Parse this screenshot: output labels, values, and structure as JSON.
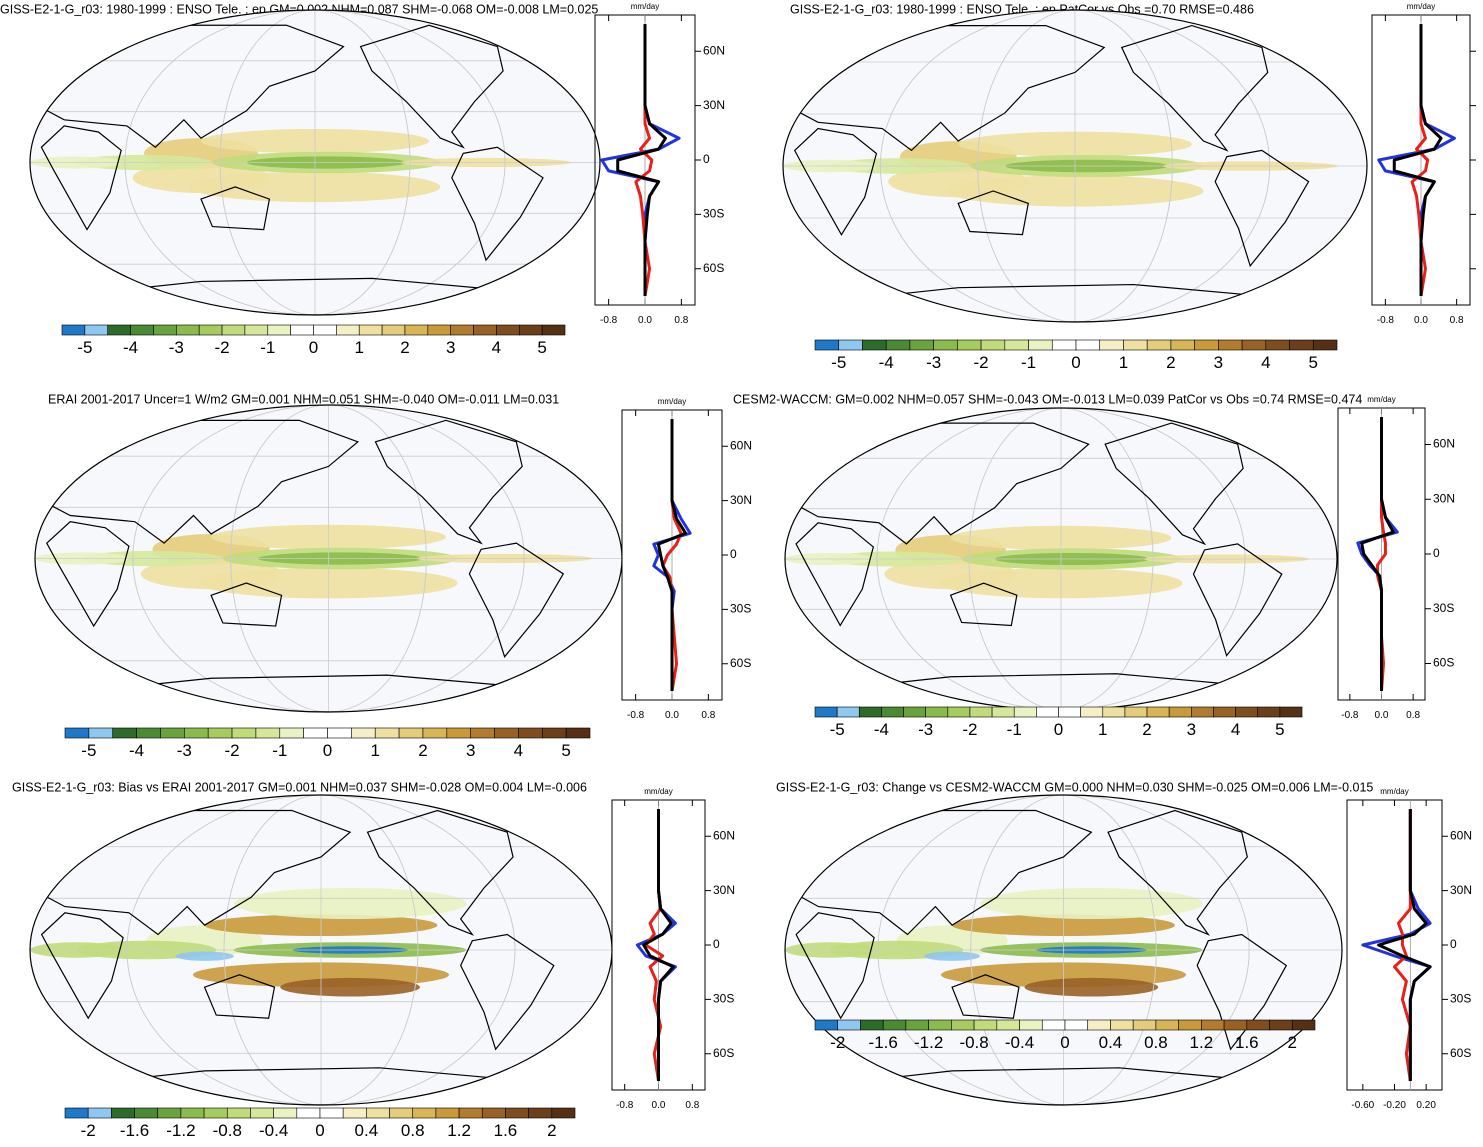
{
  "colormap": [
    "#1f78c8",
    "#8ec7ef",
    "#2e6b2a",
    "#4b8a32",
    "#6aa33d",
    "#8bbb4c",
    "#a6cc5f",
    "#c0db7a",
    "#d5e89a",
    "#e8f2c2",
    "#ffffff",
    "#ffffff",
    "#f5efc8",
    "#ede0a0",
    "#e3cc7a",
    "#d8b555",
    "#c89a3a",
    "#b27c2e",
    "#986226",
    "#7f4e1f",
    "#6b3f1a",
    "#553015"
  ],
  "profile_lat": [
    -75,
    -60,
    -45,
    -30,
    -20,
    -12,
    -6,
    0,
    6,
    12,
    20,
    30,
    45,
    60,
    75
  ],
  "panels": [
    {
      "title": "GISS-E2-1-G_r03: 1980-1999 : ENSO Tele. : ep GM=0.002 NHM=0.087 SHM=-0.068 OM=-0.008 LM=0.025",
      "clim": [
        -5.5,
        5.5
      ],
      "cticks": [
        -5,
        -4,
        -3,
        -2,
        -1,
        0,
        1,
        2,
        3,
        4,
        5
      ],
      "profile": {
        "type": "line",
        "unit": "mm/day",
        "xlim": [
          -1.1,
          1.1
        ],
        "xticks": [
          -0.8,
          {
            "value": 0,
            "label": "0.0"
          },
          0.8
        ],
        "ylim": [
          -80,
          80
        ],
        "yticks": [
          {
            "value": 60,
            "label": "60N"
          },
          {
            "value": 30,
            "label": "30N"
          },
          0,
          {
            "value": -30,
            "label": "30S"
          },
          {
            "value": -60,
            "label": "60S"
          }
        ],
        "series": [
          {
            "color": "#2233dd",
            "values": [
              0,
              0,
              0,
              0,
              0.1,
              0.3,
              -0.8,
              -0.95,
              0.3,
              0.75,
              0.1,
              0,
              0,
              0,
              0
            ]
          },
          {
            "color": "#e8201a",
            "values": [
              0,
              0.1,
              0,
              -0.05,
              -0.1,
              -0.2,
              0.1,
              0.15,
              -0.1,
              0.1,
              0,
              0,
              0,
              0,
              0
            ]
          },
          {
            "color": "#000000",
            "values": [
              0,
              0,
              0,
              0.05,
              0.1,
              0.3,
              -0.6,
              -0.6,
              0.3,
              0.45,
              0.1,
              0,
              0,
              0,
              0
            ]
          }
        ]
      }
    },
    {
      "title": "GISS-E2-1-G_r03: 1980-1999 : ENSO Tele. : ep PatCor vs Obs =0.70 RMSE=0.486",
      "clim": [
        -5.5,
        5.5
      ],
      "cticks": [
        -5,
        -4,
        -3,
        -2,
        -1,
        0,
        1,
        2,
        3,
        4,
        5
      ],
      "profile": {
        "type": "line",
        "unit": "mm/day",
        "xlim": [
          -1.1,
          1.1
        ],
        "xticks": [
          -0.8,
          {
            "value": 0,
            "label": "0.0"
          },
          0.8
        ],
        "ylim": [
          -80,
          80
        ],
        "yticks": [
          60,
          30,
          0,
          -30,
          -60
        ],
        "show_ytick_labels": false,
        "series": [
          {
            "color": "#2233dd",
            "values": [
              0,
              0,
              0,
              0,
              0.1,
              0.3,
              -0.8,
              -0.95,
              0.3,
              0.75,
              0.1,
              0,
              0,
              0,
              0
            ]
          },
          {
            "color": "#e8201a",
            "values": [
              0,
              0.1,
              0,
              -0.05,
              -0.1,
              -0.2,
              0.1,
              0.15,
              -0.1,
              0.1,
              0,
              0,
              0,
              0,
              0
            ]
          },
          {
            "color": "#000000",
            "values": [
              0,
              0,
              0,
              0.05,
              0.1,
              0.3,
              -0.6,
              -0.6,
              0.3,
              0.45,
              0.1,
              0,
              0,
              0,
              0
            ]
          }
        ]
      }
    },
    {
      "title": "ERAI 2001-2017 Uncer=1 W/m2 GM=0.001 NHM=0.051 SHM=-0.040 OM=-0.011 LM=0.031",
      "clim": [
        -5.5,
        5.5
      ],
      "cticks": [
        -5,
        -4,
        -3,
        -2,
        -1,
        0,
        1,
        2,
        3,
        4,
        5
      ],
      "profile": {
        "type": "line",
        "unit": "mm/day",
        "xlim": [
          -1.1,
          1.1
        ],
        "xticks": [
          -0.8,
          {
            "value": 0,
            "label": "0.0"
          },
          0.8
        ],
        "ylim": [
          -80,
          80
        ],
        "yticks": [
          {
            "value": 60,
            "label": "60N"
          },
          {
            "value": 30,
            "label": "30N"
          },
          0,
          {
            "value": -30,
            "label": "30S"
          },
          {
            "value": -60,
            "label": "60S"
          }
        ],
        "series": [
          {
            "color": "#2233dd",
            "values": [
              0,
              0,
              0,
              0,
              0.05,
              -0.1,
              -0.4,
              -0.3,
              -0.4,
              0.4,
              0.2,
              0,
              0,
              0,
              0
            ]
          },
          {
            "color": "#e8201a",
            "values": [
              0,
              0.1,
              0.05,
              0,
              0,
              -0.05,
              -0.2,
              -0.1,
              0.1,
              0.2,
              0.05,
              0,
              0,
              0,
              0
            ]
          },
          {
            "color": "#000000",
            "values": [
              0,
              0,
              0,
              0,
              0,
              -0.1,
              -0.2,
              -0.25,
              -0.3,
              0.3,
              0.1,
              0,
              0,
              0,
              0
            ]
          }
        ]
      }
    },
    {
      "title": "CESM2-WACCM: GM=0.002 NHM=0.057 SHM=-0.043 OM=-0.013 LM=0.039 PatCor vs Obs =0.74 RMSE=0.474",
      "clim": [
        -5.5,
        5.5
      ],
      "cticks": [
        -5,
        -4,
        -3,
        -2,
        -1,
        0,
        1,
        2,
        3,
        4,
        5
      ],
      "profile": {
        "type": "line",
        "unit": "mm/day",
        "xlim": [
          -1.1,
          1.1
        ],
        "xticks": [
          -0.8,
          {
            "value": 0,
            "label": "0.0"
          },
          0.8
        ],
        "ylim": [
          -80,
          80
        ],
        "yticks": [
          {
            "value": 60,
            "label": "60N"
          },
          {
            "value": 30,
            "label": "30N"
          },
          0,
          {
            "value": -30,
            "label": "30S"
          },
          {
            "value": -60,
            "label": "60S"
          }
        ],
        "series": [
          {
            "color": "#2233dd",
            "values": [
              0,
              0,
              0,
              0,
              0,
              -0.05,
              -0.3,
              -0.5,
              -0.6,
              0.4,
              0.1,
              0,
              0,
              0,
              0
            ]
          },
          {
            "color": "#e8201a",
            "values": [
              0,
              0.05,
              0,
              0,
              0,
              -0.1,
              -0.1,
              0.1,
              0.1,
              0.05,
              0,
              0,
              0,
              0,
              0
            ]
          },
          {
            "color": "#000000",
            "values": [
              0,
              0,
              0,
              0,
              0,
              -0.05,
              -0.25,
              -0.45,
              -0.5,
              0.3,
              0.1,
              0,
              0,
              0,
              0
            ]
          }
        ]
      }
    },
    {
      "title": "GISS-E2-1-G_r03: Bias vs ERAI 2001-2017 GM=0.001 NHM=0.037 SHM=-0.028 OM=0.004 LM=-0.006",
      "clim": [
        -2.2,
        2.2
      ],
      "cticks": [
        -2,
        -1.6,
        -1.2,
        -0.8,
        -0.4,
        0,
        0.4,
        0.8,
        1.2,
        1.6,
        2
      ],
      "profile": {
        "type": "line",
        "unit": "mm/day",
        "xlim": [
          -1.1,
          1.1
        ],
        "xticks": [
          -0.8,
          {
            "value": 0,
            "label": "0.0"
          },
          0.8
        ],
        "ylim": [
          -80,
          80
        ],
        "yticks": [
          {
            "value": 60,
            "label": "60N"
          },
          {
            "value": 30,
            "label": "30N"
          },
          0,
          {
            "value": -30,
            "label": "30S"
          },
          {
            "value": -60,
            "label": "60S"
          }
        ],
        "series": [
          {
            "color": "#2233dd",
            "values": [
              0,
              0,
              0,
              0,
              0.05,
              0.4,
              -0.3,
              -0.5,
              0.1,
              0.4,
              0.05,
              0,
              0,
              0,
              0
            ]
          },
          {
            "color": "#e8201a",
            "values": [
              0,
              -0.1,
              0.05,
              -0.1,
              -0.05,
              -0.2,
              0.1,
              -0.3,
              -0.1,
              -0.2,
              0.05,
              0,
              0,
              0,
              0
            ]
          },
          {
            "color": "#000000",
            "values": [
              0,
              0,
              0,
              0,
              0.05,
              0.35,
              -0.2,
              -0.35,
              0.1,
              0.3,
              0.05,
              0,
              0,
              0,
              0
            ]
          }
        ]
      }
    },
    {
      "title": "GISS-E2-1-G_r03: Change vs CESM2-WACCM GM=0.000 NHM=0.030 SHM=-0.025 OM=0.006 LM=-0.015",
      "clim": [
        -2.2,
        2.2
      ],
      "cticks": [
        -2,
        -1.6,
        -1.2,
        -0.8,
        -0.4,
        0,
        0.4,
        0.8,
        1.2,
        1.6,
        2
      ],
      "profile": {
        "type": "line",
        "unit": "mm/day",
        "xlim": [
          -0.8,
          0.4
        ],
        "xticks": [
          {
            "value": -0.6,
            "label": "-0.60"
          },
          {
            "value": -0.2,
            "label": "-0.20"
          },
          {
            "value": 0.2,
            "label": "0.20"
          }
        ],
        "ylim": [
          -80,
          80
        ],
        "yticks": [
          {
            "value": 60,
            "label": "60N"
          },
          {
            "value": 30,
            "label": "30N"
          },
          0,
          {
            "value": -30,
            "label": "30S"
          },
          {
            "value": -60,
            "label": "60S"
          }
        ],
        "series": [
          {
            "color": "#2233dd",
            "values": [
              0,
              0,
              0,
              0,
              0.05,
              0.25,
              -0.2,
              -0.6,
              0,
              0.25,
              0.1,
              0,
              0,
              0,
              0
            ]
          },
          {
            "color": "#e8201a",
            "values": [
              0,
              -0.05,
              0,
              -0.1,
              -0.05,
              -0.2,
              -0.05,
              -0.1,
              -0.1,
              -0.15,
              0,
              0,
              0,
              0,
              0
            ]
          },
          {
            "color": "#000000",
            "values": [
              0,
              0,
              0,
              0,
              0.05,
              0.25,
              -0.1,
              -0.4,
              0.05,
              0.2,
              0.05,
              0,
              0,
              0,
              0
            ]
          }
        ]
      }
    }
  ]
}
